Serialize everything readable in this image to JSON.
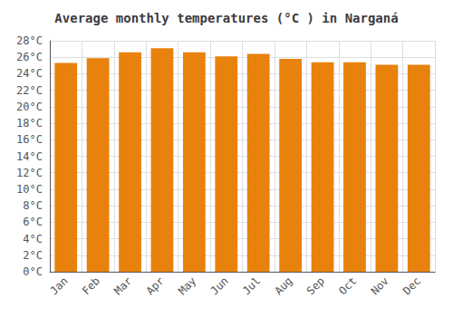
{
  "chart_data": {
    "type": "bar",
    "title": "Average monthly temperatures (°C ) in Narganá",
    "categories": [
      "Jan",
      "Feb",
      "Mar",
      "Apr",
      "May",
      "Jun",
      "Jul",
      "Aug",
      "Sep",
      "Oct",
      "Nov",
      "Dec"
    ],
    "values": [
      25.3,
      25.9,
      26.6,
      27.1,
      26.6,
      26.1,
      26.4,
      25.8,
      25.4,
      25.4,
      25.1,
      25.1
    ],
    "color": "#E8820C",
    "ylim": [
      0,
      28
    ],
    "yticks": [
      {
        "value": 0,
        "label": "0°C"
      },
      {
        "value": 2,
        "label": "2°C"
      },
      {
        "value": 4,
        "label": "4°C"
      },
      {
        "value": 6,
        "label": "6°C"
      },
      {
        "value": 8,
        "label": "8°C"
      },
      {
        "value": 10,
        "label": "10°C"
      },
      {
        "value": 12,
        "label": "12°C"
      },
      {
        "value": 14,
        "label": "14°C"
      },
      {
        "value": 16,
        "label": "16°C"
      },
      {
        "value": 18,
        "label": "18°C"
      },
      {
        "value": 20,
        "label": "20°C"
      },
      {
        "value": 22,
        "label": "22°C"
      },
      {
        "value": 24,
        "label": "24°C"
      },
      {
        "value": 26,
        "label": "26°C"
      },
      {
        "value": 28,
        "label": "28°C"
      }
    ],
    "grid": true
  }
}
